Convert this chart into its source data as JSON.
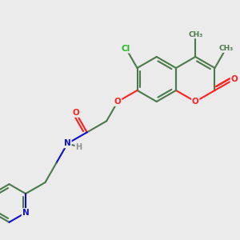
{
  "bg_color": "#ebebeb",
  "bond_color": "#4a7a4a",
  "atom_colors": {
    "O": "#ff2020",
    "N": "#1010cc",
    "Cl": "#22bb22",
    "H": "#909090",
    "C": "#4a7a4a"
  },
  "figsize": [
    3.0,
    3.0
  ],
  "dpi": 100,
  "lw": 1.5
}
